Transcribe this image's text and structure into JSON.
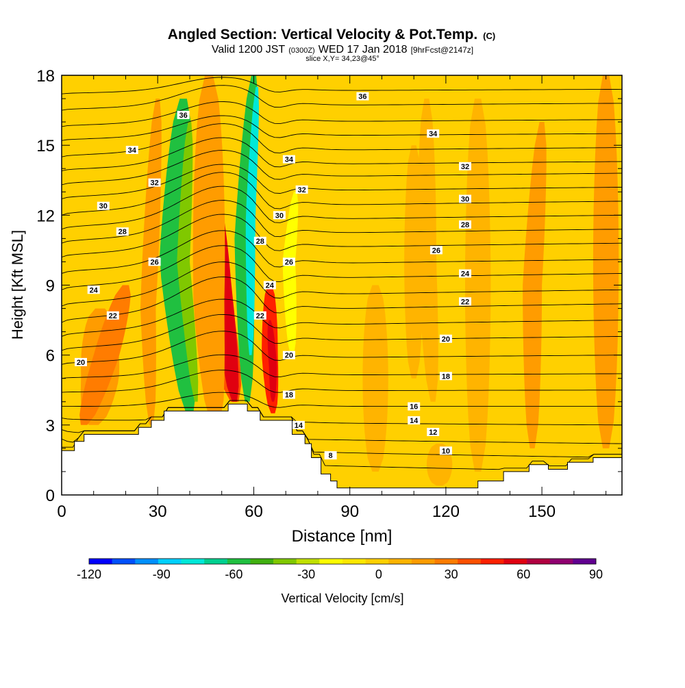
{
  "header": {
    "title": "Angled Section: Vertical Velocity & Pot.Temp.",
    "title_unit": "(C)",
    "valid_prefix": "Valid 1200 JST",
    "valid_z": "(0300Z)",
    "valid_date": "WED 17 Jan 2018",
    "forecast": "[9hrFcst@2147z]",
    "slice": "slice X,Y= 34,23@45°"
  },
  "chart_data": {
    "type": "heatmap",
    "xlabel": "Distance [nm]",
    "ylabel": "Height [Kft MSL]",
    "xlim": [
      0,
      175
    ],
    "ylim": [
      0,
      18
    ],
    "x_ticks": [
      0,
      30,
      60,
      90,
      120,
      150
    ],
    "y_ticks": [
      0,
      3,
      6,
      9,
      12,
      15,
      18
    ],
    "colorbar": {
      "label": "Vertical Velocity [cm/s]",
      "min": -120,
      "max": 90,
      "step": 10,
      "tick_values": [
        -120,
        -90,
        -60,
        -30,
        0,
        30,
        60,
        90
      ],
      "tick_labels": [
        "-120",
        "-90",
        "-60",
        "-30",
        "0",
        "30",
        "60",
        "90"
      ],
      "colors": [
        "#0000ff",
        "#0050ff",
        "#0090ff",
        "#00d0ff",
        "#00e8d8",
        "#00d090",
        "#20c040",
        "#40b010",
        "#80c800",
        "#c0e000",
        "#ffff00",
        "#ffe800",
        "#ffd000",
        "#ffb400",
        "#ff9c00",
        "#ff7c00",
        "#ff5000",
        "#ff2000",
        "#e00010",
        "#b00040",
        "#900070",
        "#600090"
      ]
    },
    "terrain": [
      [
        0,
        1.9
      ],
      [
        4,
        1.9
      ],
      [
        4,
        2.3
      ],
      [
        7,
        2.3
      ],
      [
        7,
        2.6
      ],
      [
        24,
        2.6
      ],
      [
        24,
        2.9
      ],
      [
        28,
        2.9
      ],
      [
        28,
        3.2
      ],
      [
        32,
        3.2
      ],
      [
        32,
        3.6
      ],
      [
        52,
        3.6
      ],
      [
        52,
        3.9
      ],
      [
        58,
        3.9
      ],
      [
        58,
        3.6
      ],
      [
        62,
        3.6
      ],
      [
        62,
        3.2
      ],
      [
        72,
        3.2
      ],
      [
        72,
        2.6
      ],
      [
        76,
        2.6
      ],
      [
        76,
        2.2
      ],
      [
        78,
        2.2
      ],
      [
        78,
        1.6
      ],
      [
        81,
        1.6
      ],
      [
        81,
        0.9
      ],
      [
        84,
        0.9
      ],
      [
        84,
        0.6
      ],
      [
        86,
        0.6
      ],
      [
        86,
        0.3
      ],
      [
        130,
        0.3
      ],
      [
        130,
        0.6
      ],
      [
        138,
        0.6
      ],
      [
        138,
        1.0
      ],
      [
        146,
        1.0
      ],
      [
        146,
        1.3
      ],
      [
        152,
        1.3
      ],
      [
        152,
        1.1
      ],
      [
        158,
        1.1
      ],
      [
        158,
        1.4
      ],
      [
        166,
        1.4
      ],
      [
        166,
        1.6
      ],
      [
        175,
        1.6
      ]
    ],
    "velocity_features": [
      {
        "x": [
          40,
          35,
          38
        ],
        "y": [
          3.5,
          10,
          17
        ],
        "w": 9,
        "value": -60
      },
      {
        "x": [
          42,
          38,
          40
        ],
        "y": [
          4,
          10,
          16
        ],
        "w": 4,
        "value": -40
      },
      {
        "x": [
          58,
          57,
          60
        ],
        "y": [
          4,
          11,
          18
        ],
        "w": 6,
        "value": -60
      },
      {
        "x": [
          59,
          59,
          61
        ],
        "y": [
          6,
          12,
          17.5
        ],
        "w": 3,
        "value": -80
      },
      {
        "x": [
          72,
          71,
          73
        ],
        "y": [
          6,
          10,
          13
        ],
        "w": 4,
        "value": -20
      },
      {
        "x": [
          54,
          46,
          46
        ],
        "y": [
          4,
          10,
          14
        ],
        "w": 10,
        "value": 40
      },
      {
        "x": [
          54,
          50,
          48
        ],
        "y": [
          4,
          9,
          13
        ],
        "w": 6,
        "value": 60
      },
      {
        "x": [
          66,
          65,
          65
        ],
        "y": [
          3.5,
          6,
          9
        ],
        "w": 5,
        "value": 50
      },
      {
        "x": [
          66,
          66,
          65
        ],
        "y": [
          4,
          5.5,
          7.5
        ],
        "w": 2.5,
        "value": 60
      },
      {
        "x": [
          10,
          12,
          12
        ],
        "y": [
          3,
          5,
          8
        ],
        "w": 12,
        "value": 20
      },
      {
        "x": [
          7,
          14,
          20
        ],
        "y": [
          3,
          6,
          9
        ],
        "w": 8,
        "value": 30
      },
      {
        "x": [
          28,
          27,
          30
        ],
        "y": [
          3,
          8,
          17
        ],
        "w": 5,
        "value": 20
      },
      {
        "x": [
          48,
          46,
          46
        ],
        "y": [
          3,
          8,
          18
        ],
        "w": 10,
        "value": 20
      },
      {
        "x": [
          110,
          110,
          110
        ],
        "y": [
          5,
          10,
          15
        ],
        "w": 6,
        "value": 15
      },
      {
        "x": [
          130,
          130,
          130
        ],
        "y": [
          1,
          9,
          17
        ],
        "w": 8,
        "value": 15
      },
      {
        "x": [
          147,
          147,
          150
        ],
        "y": [
          2,
          9,
          16
        ],
        "w": 6,
        "value": 20
      },
      {
        "x": [
          170,
          170,
          170
        ],
        "y": [
          2,
          8,
          18
        ],
        "w": 8,
        "value": 20
      },
      {
        "x": [
          116,
          114,
          114
        ],
        "y": [
          4,
          10,
          17
        ],
        "w": 6,
        "value": 12
      },
      {
        "x": [
          98,
          98,
          98
        ],
        "y": [
          1,
          5,
          9
        ],
        "w": 8,
        "value": 15
      },
      {
        "x": [
          118,
          118,
          118
        ],
        "y": [
          0.4,
          1.2,
          2.2
        ],
        "w": 8,
        "value": 15
      }
    ],
    "isentropes": [
      {
        "base": 1.9,
        "top": 1.0,
        "ridge": 0.0,
        "value": 10
      },
      {
        "base": 2.4,
        "top": 1.6,
        "ridge": 0.0,
        "value": 12
      },
      {
        "base": 2.8,
        "top": 2.2,
        "ridge": 0.0,
        "value": 14
      },
      {
        "base": 3.3,
        "top": 3.0,
        "ridge": 0.1,
        "value": 15
      },
      {
        "base": 3.8,
        "top": 3.8,
        "ridge": 0.2,
        "value": 16
      },
      {
        "base": 4.4,
        "top": 4.5,
        "ridge": 0.3,
        "value": 17
      },
      {
        "base": 5.0,
        "top": 5.2,
        "ridge": 0.3,
        "value": 18
      },
      {
        "base": 5.6,
        "top": 6.0,
        "ridge": 0.4,
        "value": 19
      },
      {
        "base": 6.2,
        "top": 6.8,
        "ridge": 0.4,
        "value": 20
      },
      {
        "base": 6.8,
        "top": 7.5,
        "ridge": 0.4,
        "value": 21
      },
      {
        "base": 7.4,
        "top": 8.2,
        "ridge": 0.5,
        "value": 22
      },
      {
        "base": 8.1,
        "top": 8.8,
        "ridge": 0.5,
        "value": 23
      },
      {
        "base": 8.8,
        "top": 9.5,
        "ridge": 0.5,
        "value": 24
      },
      {
        "base": 9.5,
        "top": 10.1,
        "ridge": 0.5,
        "value": 25
      },
      {
        "base": 10.2,
        "top": 10.8,
        "ridge": 0.5,
        "value": 26
      },
      {
        "base": 10.8,
        "top": 11.4,
        "ridge": 0.5,
        "value": 27
      },
      {
        "base": 11.4,
        "top": 12.0,
        "ridge": 0.5,
        "value": 28
      },
      {
        "base": 12.0,
        "top": 12.6,
        "ridge": 0.5,
        "value": 29
      },
      {
        "base": 12.7,
        "top": 13.2,
        "ridge": 0.4,
        "value": 30
      },
      {
        "base": 13.3,
        "top": 13.8,
        "ridge": 0.4,
        "value": 31
      },
      {
        "base": 13.9,
        "top": 14.3,
        "ridge": 0.4,
        "value": 32
      },
      {
        "base": 14.5,
        "top": 14.9,
        "ridge": 0.4,
        "value": 33
      },
      {
        "base": 15.2,
        "top": 15.5,
        "ridge": 0.3,
        "value": 34
      },
      {
        "base": 15.8,
        "top": 16.1,
        "ridge": 0.3,
        "value": 35
      },
      {
        "base": 16.5,
        "top": 16.8,
        "ridge": 0.3,
        "value": 36
      },
      {
        "base": 17.2,
        "top": 17.4,
        "ridge": 0.2,
        "value": 37
      }
    ],
    "isentrope_labels": [
      {
        "text": "36",
        "x": 38,
        "y": 16.3
      },
      {
        "text": "36",
        "x": 94,
        "y": 17.1
      },
      {
        "text": "34",
        "x": 22,
        "y": 14.8
      },
      {
        "text": "34",
        "x": 71,
        "y": 14.4
      },
      {
        "text": "34",
        "x": 116,
        "y": 15.5
      },
      {
        "text": "32",
        "x": 29,
        "y": 13.4
      },
      {
        "text": "32",
        "x": 75,
        "y": 13.1
      },
      {
        "text": "32",
        "x": 126,
        "y": 14.1
      },
      {
        "text": "30",
        "x": 13,
        "y": 12.4
      },
      {
        "text": "30",
        "x": 68,
        "y": 12.0
      },
      {
        "text": "30",
        "x": 126,
        "y": 12.7
      },
      {
        "text": "28",
        "x": 19,
        "y": 11.3
      },
      {
        "text": "28",
        "x": 62,
        "y": 10.9
      },
      {
        "text": "28",
        "x": 126,
        "y": 11.6
      },
      {
        "text": "26",
        "x": 29,
        "y": 10.0
      },
      {
        "text": "26",
        "x": 71,
        "y": 10.0
      },
      {
        "text": "26",
        "x": 117,
        "y": 10.5
      },
      {
        "text": "24",
        "x": 10,
        "y": 8.8
      },
      {
        "text": "24",
        "x": 65,
        "y": 9.0
      },
      {
        "text": "24",
        "x": 126,
        "y": 9.5
      },
      {
        "text": "22",
        "x": 16,
        "y": 7.7
      },
      {
        "text": "22",
        "x": 62,
        "y": 7.7
      },
      {
        "text": "22",
        "x": 126,
        "y": 8.3
      },
      {
        "text": "20",
        "x": 6,
        "y": 5.7
      },
      {
        "text": "20",
        "x": 71,
        "y": 6.0
      },
      {
        "text": "20",
        "x": 120,
        "y": 6.7
      },
      {
        "text": "18",
        "x": 71,
        "y": 4.3
      },
      {
        "text": "18",
        "x": 120,
        "y": 5.1
      },
      {
        "text": "16",
        "x": 110,
        "y": 3.8
      },
      {
        "text": "14",
        "x": 74,
        "y": 3.0
      },
      {
        "text": "14",
        "x": 110,
        "y": 3.2
      },
      {
        "text": "12",
        "x": 116,
        "y": 2.7
      },
      {
        "text": "10",
        "x": 120,
        "y": 1.9
      },
      {
        "text": "8",
        "x": 84,
        "y": 1.7
      }
    ]
  }
}
